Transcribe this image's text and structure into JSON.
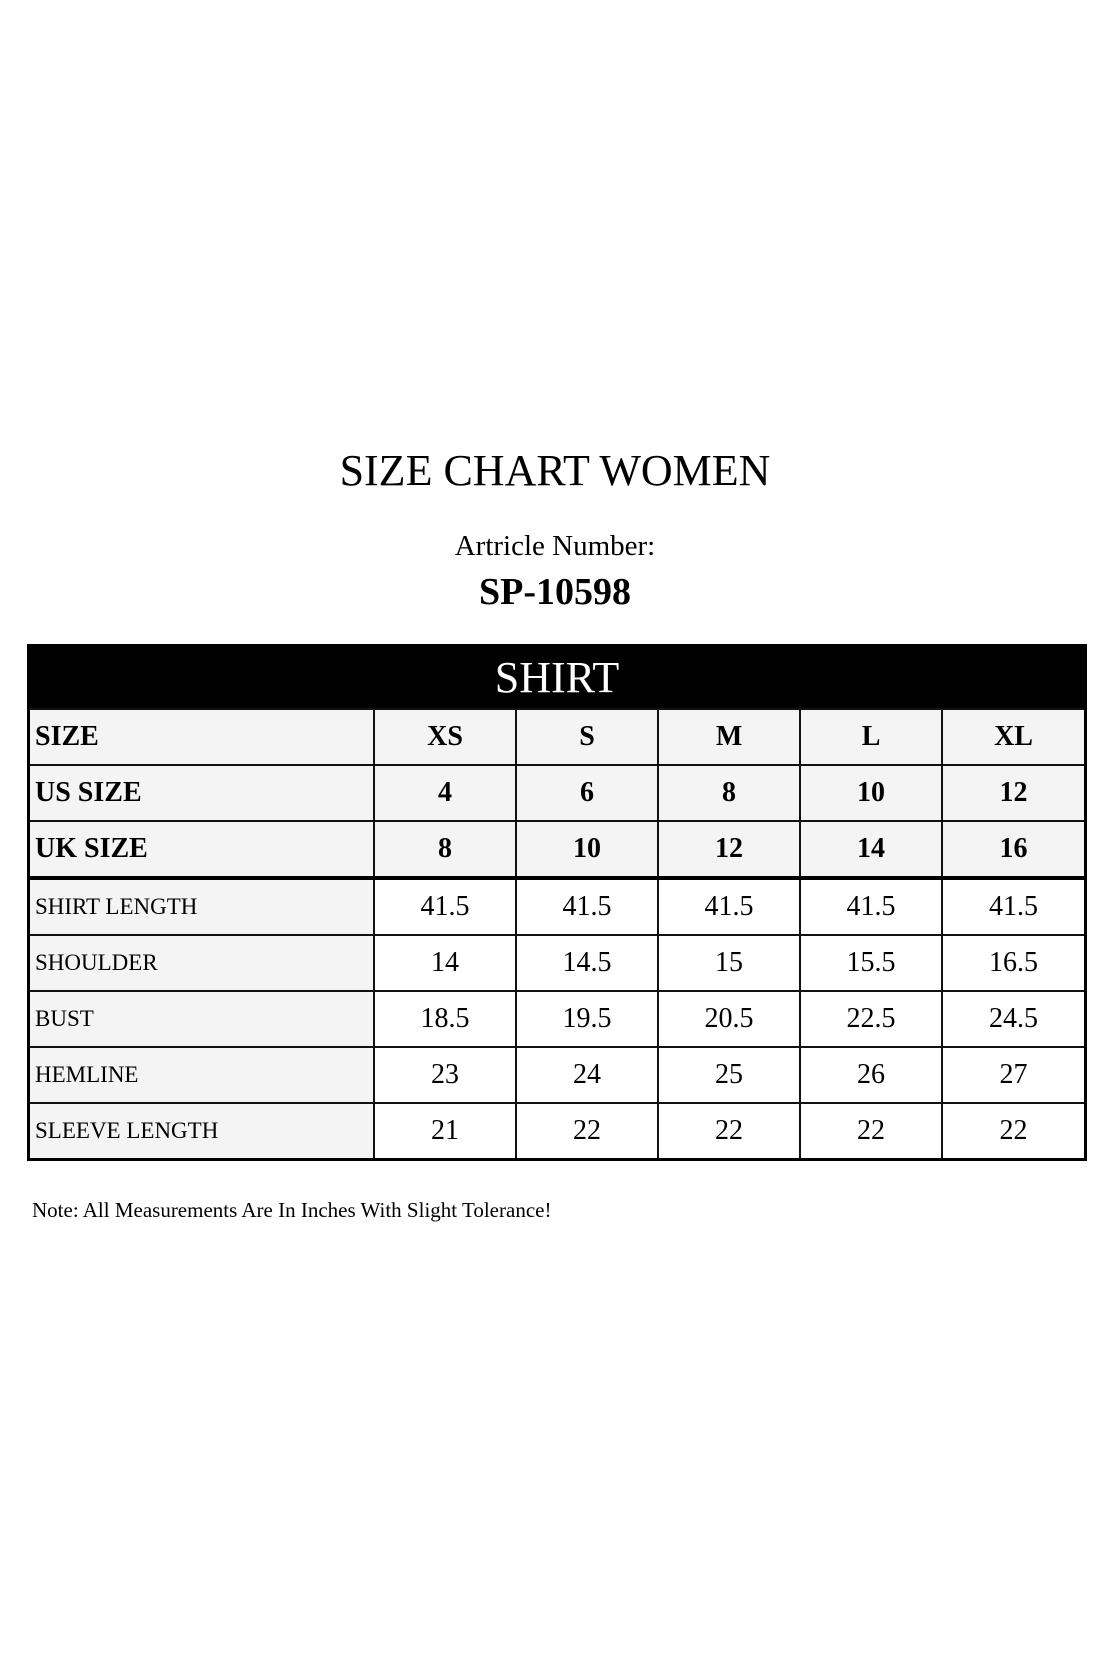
{
  "title": "SIZE CHART WOMEN",
  "article_label": "Artricle Number:",
  "article_number": "SP-10598",
  "table": {
    "section": "SHIRT",
    "header_rows": [
      {
        "label": "SIZE",
        "values": [
          "XS",
          "S",
          "M",
          "L",
          "XL"
        ]
      },
      {
        "label": "US SIZE",
        "values": [
          "4",
          "6",
          "8",
          "10",
          "12"
        ]
      },
      {
        "label": "UK SIZE",
        "values": [
          "8",
          "10",
          "12",
          "14",
          "16"
        ]
      }
    ],
    "rows": [
      {
        "label": "SHIRT LENGTH",
        "values": [
          "41.5",
          "41.5",
          "41.5",
          "41.5",
          "41.5"
        ]
      },
      {
        "label": "SHOULDER",
        "values": [
          "14",
          "14.5",
          "15",
          "15.5",
          "16.5"
        ]
      },
      {
        "label": "BUST",
        "values": [
          "18.5",
          "19.5",
          "20.5",
          "22.5",
          "24.5"
        ]
      },
      {
        "label": "HEMLINE",
        "values": [
          "23",
          "24",
          "25",
          "26",
          "27"
        ]
      },
      {
        "label": "SLEEVE LENGTH",
        "values": [
          "21",
          "22",
          "22",
          "22",
          "22"
        ]
      }
    ]
  },
  "note": "Note: All Measurements Are In Inches With Slight Tolerance!"
}
